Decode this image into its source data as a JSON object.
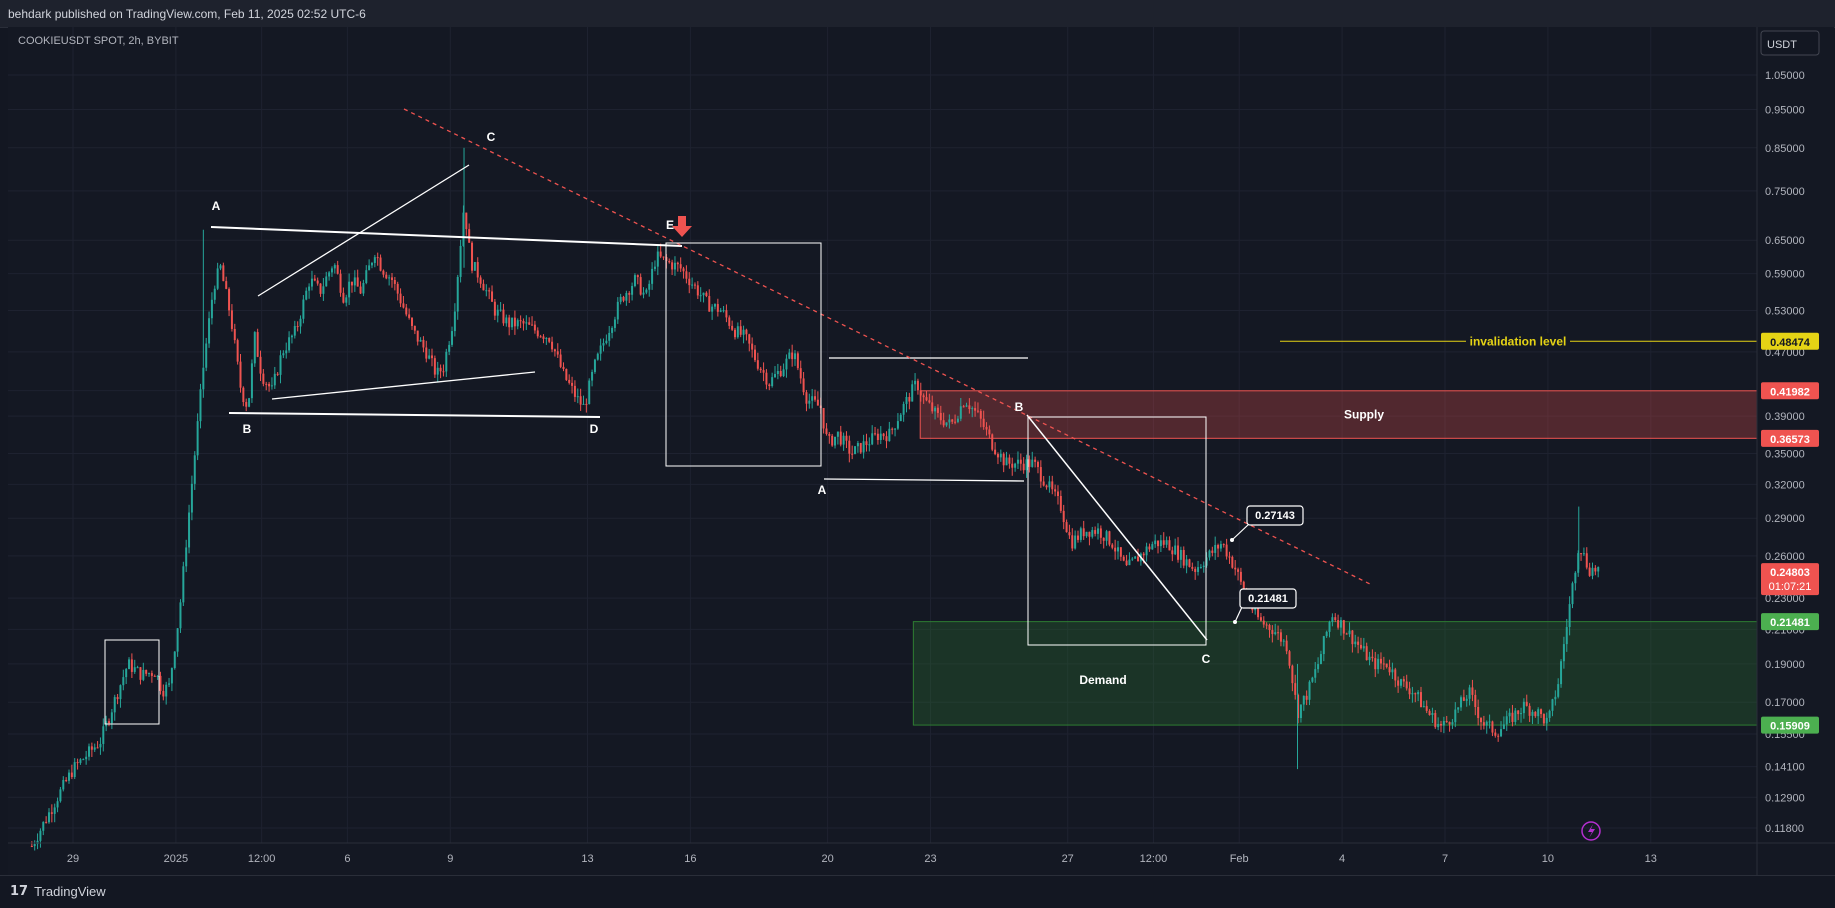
{
  "header": {
    "publish_text": "behdark published on TradingView.com, Feb 11, 2025 02:52 UTC-6"
  },
  "symbol_text": "COOKIEUSDT SPOT, 2h, BYBIT",
  "currency_button": "USDT",
  "footer": {
    "brand_mark": "17",
    "brand": "TradingView"
  },
  "colors": {
    "bg": "#131722",
    "grid": "#1f2330",
    "up": "#26a69a",
    "down": "#ef5350",
    "supply": "#ef5350",
    "demand": "#2e7d32",
    "invalidation": "#e5d315"
  },
  "chart_data": {
    "type": "candlestick",
    "symbol": "COOKIEUSDT SPOT",
    "timeframe": "2h",
    "exchange": "BYBIT",
    "y_scale": "log",
    "y_ticks": [
      "1.05000",
      "0.95000",
      "0.85000",
      "0.75000",
      "0.65000",
      "0.59000",
      "0.53000",
      "0.47000",
      "0.42000",
      "0.39000",
      "0.35000",
      "0.32000",
      "0.29000",
      "0.26000",
      "0.23000",
      "0.21000",
      "0.19000",
      "0.17000",
      "0.15500",
      "0.14100",
      "0.12900",
      "0.11800"
    ],
    "x_ticks": [
      {
        "label": "29",
        "t": 0
      },
      {
        "label": "2025",
        "t": 3
      },
      {
        "label": "12:00",
        "t": 5.5
      },
      {
        "label": "6",
        "t": 8
      },
      {
        "label": "9",
        "t": 11
      },
      {
        "label": "13",
        "t": 15
      },
      {
        "label": "16",
        "t": 18
      },
      {
        "label": "20",
        "t": 22
      },
      {
        "label": "23",
        "t": 25
      },
      {
        "label": "27",
        "t": 29
      },
      {
        "label": "12:00",
        "t": 31.5
      },
      {
        "label": "Feb",
        "t": 34
      },
      {
        "label": "4",
        "t": 37
      },
      {
        "label": "7",
        "t": 40
      },
      {
        "label": "10",
        "t": 43
      },
      {
        "label": "13",
        "t": 46
      }
    ],
    "price_path": [
      [
        -1.2,
        0.112
      ],
      [
        -0.5,
        0.128
      ],
      [
        0,
        0.14
      ],
      [
        0.8,
        0.152
      ],
      [
        1.3,
        0.175
      ],
      [
        1.6,
        0.19
      ],
      [
        2,
        0.184
      ],
      [
        2.4,
        0.186
      ],
      [
        2.6,
        0.176
      ],
      [
        2.8,
        0.178
      ],
      [
        3.1,
        0.22
      ],
      [
        3.4,
        0.3
      ],
      [
        3.8,
        0.45
      ],
      [
        4.1,
        0.57
      ],
      [
        4.3,
        0.6
      ],
      [
        4.6,
        0.52
      ],
      [
        4.9,
        0.42
      ],
      [
        5.1,
        0.4
      ],
      [
        5.3,
        0.49
      ],
      [
        5.5,
        0.44
      ],
      [
        5.8,
        0.42
      ],
      [
        6.1,
        0.47
      ],
      [
        6.5,
        0.5
      ],
      [
        6.9,
        0.58
      ],
      [
        7.2,
        0.56
      ],
      [
        7.6,
        0.61
      ],
      [
        7.9,
        0.55
      ],
      [
        8.1,
        0.58
      ],
      [
        8.4,
        0.56
      ],
      [
        8.8,
        0.63
      ],
      [
        9,
        0.6
      ],
      [
        9.3,
        0.58
      ],
      [
        9.6,
        0.54
      ],
      [
        9.9,
        0.5
      ],
      [
        10.3,
        0.47
      ],
      [
        10.6,
        0.44
      ],
      [
        10.8,
        0.45
      ],
      [
        11.1,
        0.52
      ],
      [
        11.4,
        0.72
      ],
      [
        11.6,
        0.61
      ],
      [
        11.9,
        0.58
      ],
      [
        12.3,
        0.53
      ],
      [
        12.7,
        0.51
      ],
      [
        13.1,
        0.51
      ],
      [
        13.5,
        0.5
      ],
      [
        13.9,
        0.49
      ],
      [
        14.3,
        0.44
      ],
      [
        14.7,
        0.41
      ],
      [
        14.9,
        0.4
      ],
      [
        15.2,
        0.45
      ],
      [
        15.6,
        0.5
      ],
      [
        16,
        0.55
      ],
      [
        16.4,
        0.58
      ],
      [
        16.7,
        0.55
      ],
      [
        17,
        0.62
      ],
      [
        17.3,
        0.61
      ],
      [
        17.7,
        0.6
      ],
      [
        18.1,
        0.57
      ],
      [
        18.5,
        0.54
      ],
      [
        18.9,
        0.53
      ],
      [
        19.3,
        0.5
      ],
      [
        19.6,
        0.49
      ],
      [
        19.9,
        0.46
      ],
      [
        20.3,
        0.43
      ],
      [
        20.7,
        0.45
      ],
      [
        21,
        0.47
      ],
      [
        21.4,
        0.41
      ],
      [
        21.8,
        0.4
      ],
      [
        22,
        0.36
      ],
      [
        22.3,
        0.37
      ],
      [
        22.7,
        0.35
      ],
      [
        23.1,
        0.36
      ],
      [
        23.5,
        0.37
      ],
      [
        23.8,
        0.37
      ],
      [
        24.2,
        0.4
      ],
      [
        24.6,
        0.43
      ],
      [
        24.8,
        0.41
      ],
      [
        25.2,
        0.39
      ],
      [
        25.6,
        0.38
      ],
      [
        26,
        0.41
      ],
      [
        26.4,
        0.39
      ],
      [
        26.8,
        0.36
      ],
      [
        27.2,
        0.34
      ],
      [
        27.6,
        0.34
      ],
      [
        28,
        0.34
      ],
      [
        28.4,
        0.32
      ],
      [
        28.8,
        0.3
      ],
      [
        29.1,
        0.27
      ],
      [
        29.5,
        0.28
      ],
      [
        29.9,
        0.28
      ],
      [
        30.3,
        0.27
      ],
      [
        30.7,
        0.25
      ],
      [
        31.1,
        0.26
      ],
      [
        31.5,
        0.27
      ],
      [
        31.9,
        0.27
      ],
      [
        32.3,
        0.26
      ],
      [
        32.7,
        0.25
      ],
      [
        33.1,
        0.26
      ],
      [
        33.5,
        0.27
      ],
      [
        33.9,
        0.25
      ],
      [
        34.2,
        0.23
      ],
      [
        34.6,
        0.215
      ],
      [
        35,
        0.21
      ],
      [
        35.4,
        0.2
      ],
      [
        35.7,
        0.165
      ],
      [
        36,
        0.175
      ],
      [
        36.3,
        0.19
      ],
      [
        36.7,
        0.22
      ],
      [
        37.1,
        0.21
      ],
      [
        37.5,
        0.2
      ],
      [
        37.9,
        0.19
      ],
      [
        38.3,
        0.19
      ],
      [
        38.7,
        0.18
      ],
      [
        39.1,
        0.175
      ],
      [
        39.5,
        0.165
      ],
      [
        39.9,
        0.158
      ],
      [
        40.3,
        0.165
      ],
      [
        40.7,
        0.175
      ],
      [
        41.1,
        0.16
      ],
      [
        41.5,
        0.156
      ],
      [
        41.9,
        0.162
      ],
      [
        42.3,
        0.168
      ],
      [
        42.7,
        0.165
      ],
      [
        43,
        0.16
      ],
      [
        43.3,
        0.18
      ],
      [
        43.6,
        0.22
      ],
      [
        43.9,
        0.27
      ],
      [
        44.2,
        0.25
      ],
      [
        44.5,
        0.25
      ]
    ],
    "last_price": "0.24803",
    "countdown": "01:07:21",
    "price_labels": [
      {
        "value": "0.48474",
        "color": "#e5d315",
        "text_color": "#131722"
      },
      {
        "value": "0.41982",
        "color": "#ef5350",
        "text_color": "#ffffff"
      },
      {
        "value": "0.36573",
        "color": "#ef5350",
        "text_color": "#ffffff"
      },
      {
        "value": "0.24803",
        "color": "#ef5350",
        "text_color": "#ffffff"
      },
      {
        "value": "0.21481",
        "color": "#4caf50",
        "text_color": "#ffffff"
      },
      {
        "value": "0.15909",
        "color": "#4caf50",
        "text_color": "#ffffff"
      }
    ],
    "zones": [
      {
        "name": "Supply",
        "top": 0.41982,
        "bottom": 0.36573,
        "t_start": 24.7,
        "color": "#ef5350"
      },
      {
        "name": "Demand",
        "top": 0.21481,
        "bottom": 0.15909,
        "t_start": 24.5,
        "color": "#2e7d32"
      }
    ],
    "invalidation": {
      "label": "invalidation level",
      "value": 0.48474
    },
    "callouts": [
      "0.27143",
      "0.21481"
    ],
    "wave_labels_1": [
      "A",
      "B",
      "C",
      "D",
      "E"
    ],
    "wave_labels_2": [
      "A",
      "B",
      "C"
    ]
  }
}
